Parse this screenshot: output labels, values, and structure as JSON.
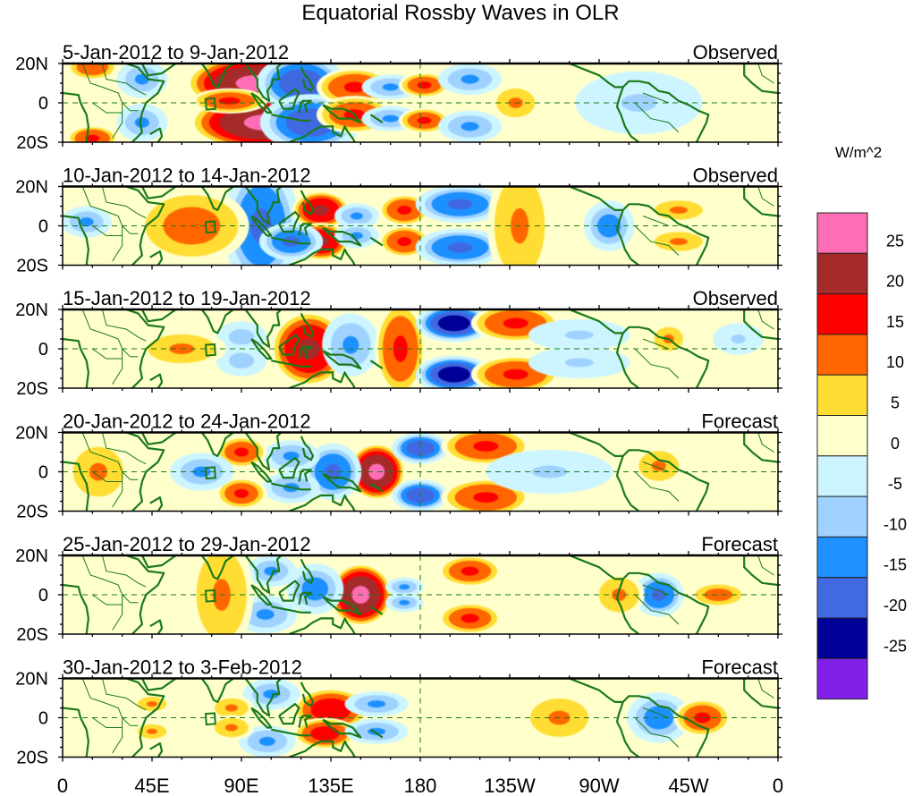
{
  "chart_data": {
    "type": "heatmap",
    "title": "Equatorial Rossby Waves in OLR",
    "xlabel": "",
    "ylabel": "",
    "x_ticks": [
      "0",
      "45E",
      "90E",
      "135E",
      "180",
      "135W",
      "90W",
      "45W",
      "0"
    ],
    "x_tick_values_deg_east": [
      0,
      45,
      90,
      135,
      180,
      225,
      270,
      315,
      360
    ],
    "y_ticks": [
      "20N",
      "0",
      "20S"
    ],
    "y_tick_values": [
      20,
      0,
      -20
    ],
    "xlim_deg_east": [
      0,
      360
    ],
    "ylim_deg": [
      -20,
      20
    ],
    "colorbar": {
      "units": "W/m^2",
      "levels": [
        -25,
        -20,
        -15,
        -10,
        -5,
        0,
        5,
        10,
        15,
        20,
        25
      ],
      "labels": [
        "25",
        "20",
        "15",
        "10",
        "5",
        "0",
        "-5",
        "-10",
        "-15",
        "-20",
        "-25"
      ],
      "colors_top_to_bottom": [
        "#ff6eb4",
        "#a52a2a",
        "#ff0000",
        "#ff6600",
        "#ffdd33",
        "#ffffcc",
        "#ccf5ff",
        "#a0d2ff",
        "#1e90ff",
        "#4169e1",
        "#000096",
        "#8020e8"
      ]
    },
    "panels": [
      {
        "period": "5-Jan-2012 to 9-Jan-2012",
        "type": "Observed",
        "anomalies": [
          {
            "lon": 97,
            "lat": 10,
            "value": 22,
            "dlon": 22,
            "dlat": 9
          },
          {
            "lon": 102,
            "lat": -10,
            "value": 22,
            "dlon": 24,
            "dlat": 9
          },
          {
            "lon": 84,
            "lat": 1,
            "value": 11,
            "dlon": 12,
            "dlat": 4
          },
          {
            "lon": 120,
            "lat": 10,
            "value": -19,
            "dlon": 14,
            "dlat": 9
          },
          {
            "lon": 125,
            "lat": -10,
            "value": -19,
            "dlon": 16,
            "dlat": 9
          },
          {
            "lon": 147,
            "lat": 8,
            "value": 12,
            "dlon": 12,
            "dlat": 6
          },
          {
            "lon": 147,
            "lat": -6,
            "value": 11,
            "dlon": 12,
            "dlat": 6
          },
          {
            "lon": 165,
            "lat": 8,
            "value": -12,
            "dlon": 9,
            "dlat": 4
          },
          {
            "lon": 165,
            "lat": -8,
            "value": -12,
            "dlon": 9,
            "dlat": 4
          },
          {
            "lon": 182,
            "lat": 9,
            "value": 11,
            "dlon": 8,
            "dlat": 4
          },
          {
            "lon": 182,
            "lat": -9,
            "value": 11,
            "dlon": 8,
            "dlat": 4
          },
          {
            "lon": 205,
            "lat": 12,
            "value": -12,
            "dlon": 10,
            "dlat": 5
          },
          {
            "lon": 205,
            "lat": -12,
            "value": -12,
            "dlon": 10,
            "dlat": 5
          },
          {
            "lon": 228,
            "lat": 0,
            "value": 6,
            "dlon": 8,
            "dlat": 6
          },
          {
            "lon": 290,
            "lat": 0,
            "value": -7,
            "dlon": 20,
            "dlat": 10
          },
          {
            "lon": 40,
            "lat": 12,
            "value": -11,
            "dlon": 8,
            "dlat": 6
          },
          {
            "lon": 40,
            "lat": -10,
            "value": -11,
            "dlon": 8,
            "dlat": 6
          },
          {
            "lon": 15,
            "lat": 18,
            "value": 10,
            "dlon": 8,
            "dlat": 4
          },
          {
            "lon": 15,
            "lat": -18,
            "value": 12,
            "dlon": 8,
            "dlat": 4
          }
        ]
      },
      {
        "period": "10-Jan-2012 to 14-Jan-2012",
        "type": "Observed",
        "anomalies": [
          {
            "lon": 100,
            "lat": 0,
            "value": -17,
            "dlon": 12,
            "dlat": 20
          },
          {
            "lon": 130,
            "lat": 8,
            "value": 17,
            "dlon": 9,
            "dlat": 6
          },
          {
            "lon": 130,
            "lat": -8,
            "value": 17,
            "dlon": 9,
            "dlat": 6
          },
          {
            "lon": 115,
            "lat": -8,
            "value": -16,
            "dlon": 10,
            "dlat": 6
          },
          {
            "lon": 148,
            "lat": 5,
            "value": -12,
            "dlon": 7,
            "dlat": 4
          },
          {
            "lon": 148,
            "lat": -5,
            "value": -11,
            "dlon": 7,
            "dlat": 4
          },
          {
            "lon": 172,
            "lat": 8,
            "value": 12,
            "dlon": 8,
            "dlat": 5
          },
          {
            "lon": 172,
            "lat": -8,
            "value": 12,
            "dlon": 8,
            "dlat": 5
          },
          {
            "lon": 200,
            "lat": 11,
            "value": -17,
            "dlon": 14,
            "dlat": 6
          },
          {
            "lon": 200,
            "lat": -11,
            "value": -17,
            "dlon": 14,
            "dlat": 6
          },
          {
            "lon": 230,
            "lat": 0,
            "value": 7,
            "dlon": 10,
            "dlat": 20
          },
          {
            "lon": 275,
            "lat": 0,
            "value": -13,
            "dlon": 8,
            "dlat": 8
          },
          {
            "lon": 65,
            "lat": 0,
            "value": 8,
            "dlon": 18,
            "dlat": 12
          },
          {
            "lon": 12,
            "lat": 2,
            "value": -11,
            "dlon": 8,
            "dlat": 5
          },
          {
            "lon": 310,
            "lat": 8,
            "value": 6,
            "dlon": 10,
            "dlat": 4
          },
          {
            "lon": 310,
            "lat": -8,
            "value": 6,
            "dlon": 10,
            "dlat": 4
          }
        ]
      },
      {
        "period": "15-Jan-2012 to 19-Jan-2012",
        "type": "Observed",
        "anomalies": [
          {
            "lon": 124,
            "lat": 0,
            "value": 17,
            "dlon": 12,
            "dlat": 12
          },
          {
            "lon": 145,
            "lat": 2,
            "value": -12,
            "dlon": 9,
            "dlat": 10
          },
          {
            "lon": 170,
            "lat": 0,
            "value": 12,
            "dlon": 8,
            "dlat": 15
          },
          {
            "lon": 197,
            "lat": 13,
            "value": -23,
            "dlon": 12,
            "dlat": 6
          },
          {
            "lon": 197,
            "lat": -13,
            "value": -23,
            "dlon": 12,
            "dlat": 6
          },
          {
            "lon": 228,
            "lat": 13,
            "value": 12,
            "dlon": 14,
            "dlat": 6
          },
          {
            "lon": 228,
            "lat": -13,
            "value": 12,
            "dlon": 14,
            "dlat": 6
          },
          {
            "lon": 260,
            "lat": 7,
            "value": -7,
            "dlon": 16,
            "dlat": 5
          },
          {
            "lon": 260,
            "lat": -7,
            "value": -7,
            "dlon": 16,
            "dlat": 5
          },
          {
            "lon": 90,
            "lat": 6,
            "value": -8,
            "dlon": 8,
            "dlat": 5
          },
          {
            "lon": 90,
            "lat": -6,
            "value": -8,
            "dlon": 8,
            "dlat": 5
          },
          {
            "lon": 60,
            "lat": 0,
            "value": 6,
            "dlon": 14,
            "dlat": 6
          },
          {
            "lon": 305,
            "lat": 5,
            "value": 6,
            "dlon": 6,
            "dlat": 5
          },
          {
            "lon": 340,
            "lat": 5,
            "value": -6,
            "dlon": 8,
            "dlat": 5
          }
        ]
      },
      {
        "period": "20-Jan-2012 to 24-Jan-2012",
        "type": "Forecast",
        "anomalies": [
          {
            "lon": 158,
            "lat": 0,
            "value": 22,
            "dlon": 9,
            "dlat": 9
          },
          {
            "lon": 136,
            "lat": 0,
            "value": -17,
            "dlon": 9,
            "dlat": 9
          },
          {
            "lon": 180,
            "lat": 12,
            "value": -19,
            "dlon": 9,
            "dlat": 5
          },
          {
            "lon": 180,
            "lat": -12,
            "value": -19,
            "dlon": 9,
            "dlat": 5
          },
          {
            "lon": 213,
            "lat": 13,
            "value": 12,
            "dlon": 14,
            "dlat": 6
          },
          {
            "lon": 213,
            "lat": -13,
            "value": 12,
            "dlon": 14,
            "dlat": 6
          },
          {
            "lon": 245,
            "lat": 0,
            "value": -6,
            "dlon": 20,
            "dlat": 7
          },
          {
            "lon": 115,
            "lat": 8,
            "value": -12,
            "dlon": 9,
            "dlat": 5
          },
          {
            "lon": 115,
            "lat": -8,
            "value": -12,
            "dlon": 9,
            "dlat": 5
          },
          {
            "lon": 90,
            "lat": 10,
            "value": 11,
            "dlon": 8,
            "dlat": 5
          },
          {
            "lon": 90,
            "lat": -11,
            "value": 11,
            "dlon": 8,
            "dlat": 5
          },
          {
            "lon": 70,
            "lat": 0,
            "value": -11,
            "dlon": 10,
            "dlat": 6
          },
          {
            "lon": 18,
            "lat": 0,
            "value": 7,
            "dlon": 10,
            "dlat": 10
          },
          {
            "lon": 300,
            "lat": 3,
            "value": 7,
            "dlon": 8,
            "dlat": 6
          }
        ]
      },
      {
        "period": "25-Jan-2012 to 29-Jan-2012",
        "type": "Forecast",
        "anomalies": [
          {
            "lon": 150,
            "lat": 0,
            "value": 22,
            "dlon": 10,
            "dlat": 10
          },
          {
            "lon": 127,
            "lat": 3,
            "value": -13,
            "dlon": 9,
            "dlat": 8
          },
          {
            "lon": 105,
            "lat": 12,
            "value": -11,
            "dlon": 8,
            "dlat": 5
          },
          {
            "lon": 102,
            "lat": -10,
            "value": -12,
            "dlon": 10,
            "dlat": 6
          },
          {
            "lon": 80,
            "lat": 0,
            "value": 7,
            "dlon": 10,
            "dlat": 18
          },
          {
            "lon": 172,
            "lat": 4,
            "value": -11,
            "dlon": 6,
            "dlat": 3
          },
          {
            "lon": 172,
            "lat": -4,
            "value": -11,
            "dlon": 6,
            "dlat": 3
          },
          {
            "lon": 205,
            "lat": 12,
            "value": 11,
            "dlon": 10,
            "dlat": 5
          },
          {
            "lon": 205,
            "lat": -12,
            "value": 11,
            "dlon": 10,
            "dlat": 5
          },
          {
            "lon": 300,
            "lat": 0,
            "value": -16,
            "dlon": 8,
            "dlat": 7
          },
          {
            "lon": 280,
            "lat": 0,
            "value": 7,
            "dlon": 8,
            "dlat": 7
          },
          {
            "lon": 330,
            "lat": 0,
            "value": 8,
            "dlon": 9,
            "dlat": 4
          }
        ]
      },
      {
        "period": "30-Jan-2012 to 3-Feb-2012",
        "type": "Forecast",
        "anomalies": [
          {
            "lon": 135,
            "lat": 4,
            "value": 14,
            "dlon": 12,
            "dlat": 7
          },
          {
            "lon": 132,
            "lat": -8,
            "value": 13,
            "dlon": 10,
            "dlat": 5
          },
          {
            "lon": 158,
            "lat": 7,
            "value": -12,
            "dlon": 10,
            "dlat": 4
          },
          {
            "lon": 158,
            "lat": -7,
            "value": -12,
            "dlon": 10,
            "dlat": 4
          },
          {
            "lon": 105,
            "lat": 12,
            "value": -11,
            "dlon": 9,
            "dlat": 5
          },
          {
            "lon": 103,
            "lat": -12,
            "value": -12,
            "dlon": 9,
            "dlat": 5
          },
          {
            "lon": 85,
            "lat": 5,
            "value": 6,
            "dlon": 7,
            "dlat": 4
          },
          {
            "lon": 85,
            "lat": -5,
            "value": 6,
            "dlon": 7,
            "dlat": 4
          },
          {
            "lon": 300,
            "lat": 0,
            "value": -13,
            "dlon": 10,
            "dlat": 8
          },
          {
            "lon": 322,
            "lat": 0,
            "value": 11,
            "dlon": 9,
            "dlat": 6
          },
          {
            "lon": 250,
            "lat": 0,
            "value": 6,
            "dlon": 12,
            "dlat": 8
          },
          {
            "lon": 45,
            "lat": 7,
            "value": 6,
            "dlon": 6,
            "dlat": 3
          },
          {
            "lon": 45,
            "lat": -7,
            "value": 6,
            "dlon": 6,
            "dlat": 3
          }
        ]
      }
    ]
  }
}
